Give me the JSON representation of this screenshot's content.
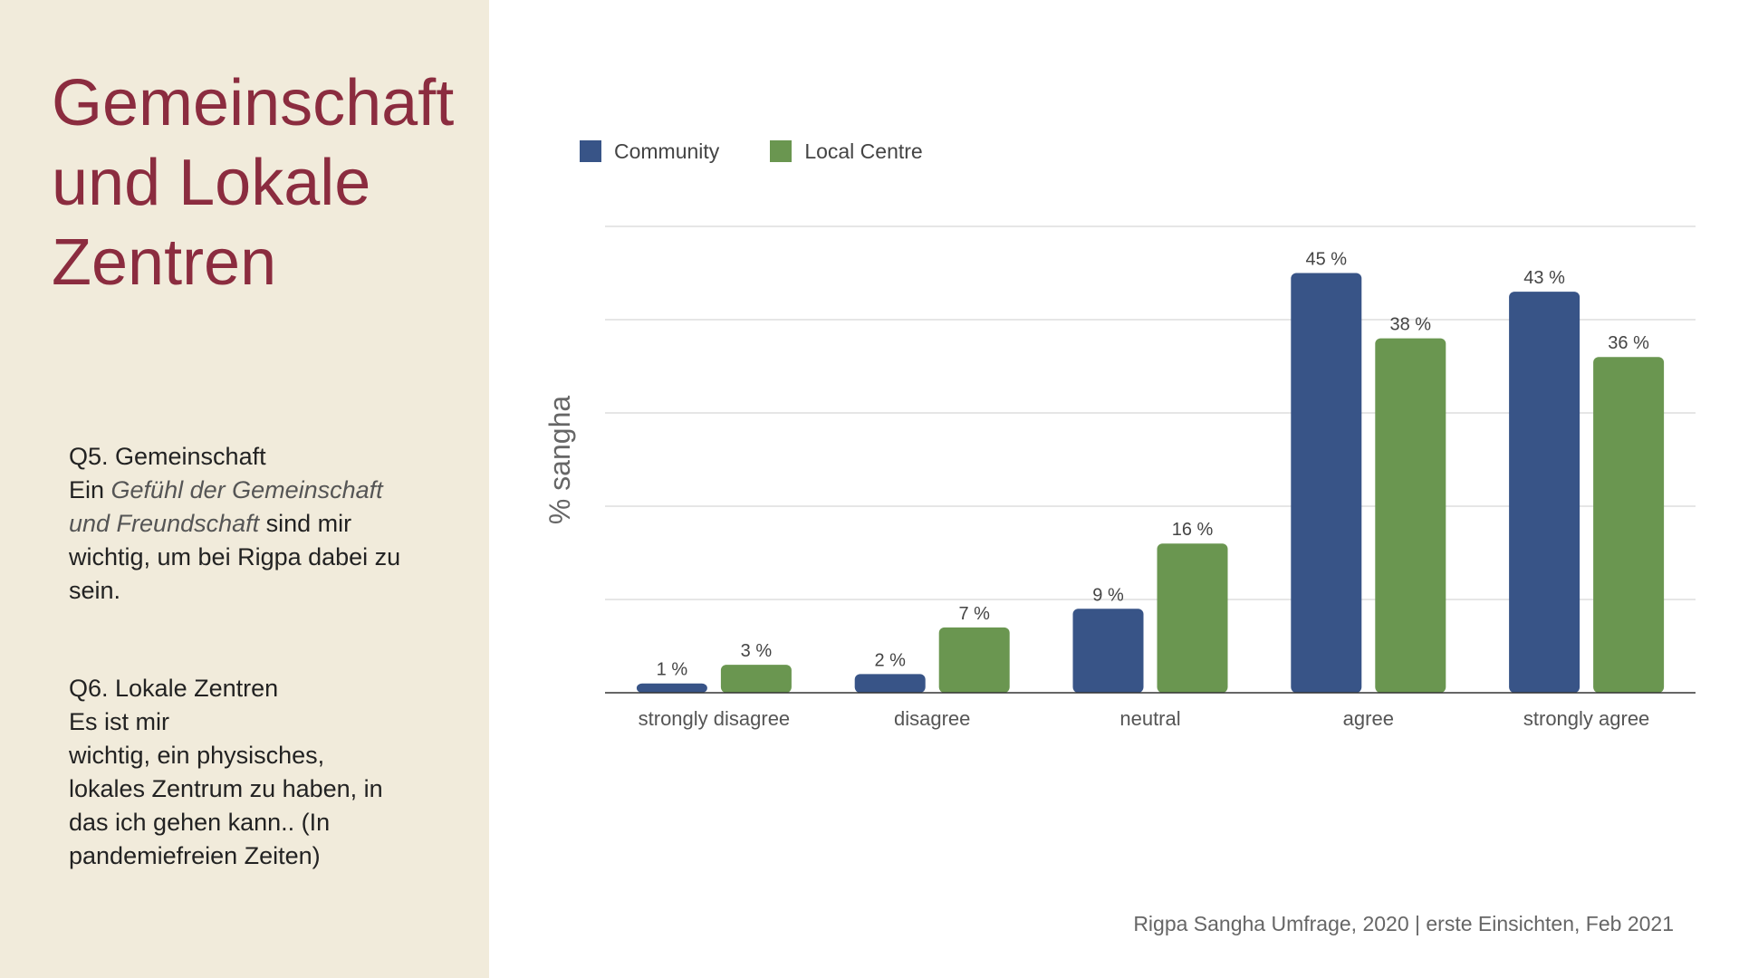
{
  "sidebar": {
    "title_lines": [
      "Gemeinschaft",
      "und Lokale",
      "Zentren"
    ],
    "q5": {
      "heading": "Q5. Gemeinschaft",
      "prefix": "Ein ",
      "emphasis_1": "Gefühl der Gemeinschaft",
      "emphasis_2": "und Freundschaft",
      "suffix": " sind mir",
      "rest_lines": [
        "wichtig, um bei Rigpa dabei zu",
        "sein."
      ]
    },
    "q6": {
      "heading": "Q6. Lokale Zentren",
      "lines": [
        "Es ist mir",
        "wichtig, ein physisches,",
        "lokales Zentrum zu haben, in",
        "das ich gehen kann.. (In",
        "pandemiefreien Zeiten)"
      ]
    }
  },
  "footer": "Rigpa Sangha Umfrage, 2020  |  erste Einsichten, Feb 2021",
  "chart_data": {
    "type": "bar",
    "categories": [
      "strongly disagree",
      "disagree",
      "neutral",
      "agree",
      "strongly agree"
    ],
    "series": [
      {
        "name": "Community",
        "values": [
          1,
          2,
          9,
          45,
          43
        ],
        "labels": [
          "1 %",
          "2 %",
          "9 %",
          "45 %",
          "43 %"
        ],
        "color": "#385487"
      },
      {
        "name": "Local Centre",
        "values": [
          3,
          7,
          16,
          38,
          36
        ],
        "labels": [
          "3 %",
          "7 %",
          "16 %",
          "38 %",
          "36 %"
        ],
        "color": "#6a9650"
      }
    ],
    "ylabel": "% sangha",
    "ylim": [
      0,
      50
    ],
    "ytick_step": 10,
    "grid": true,
    "legend_position": "top-left"
  }
}
